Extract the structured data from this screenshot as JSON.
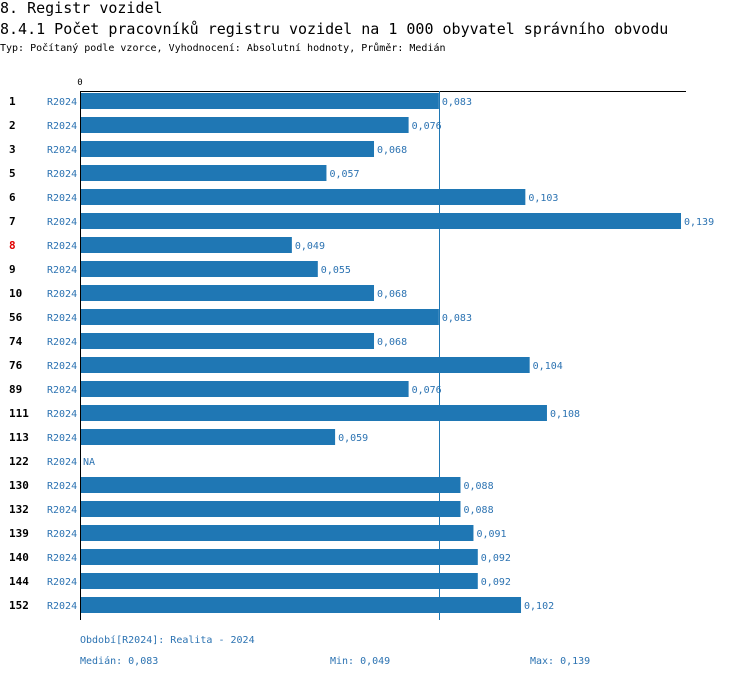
{
  "header": {
    "section": "8. Registr vozidel",
    "title": "8.4.1 Počet pracovníků registru vozidel na 1 000 obyvatel správního obvodu",
    "subtitle": "Typ: Počítaný podle vzorce, Vyhodnocení: Absolutní hodnoty, Průměr: Medián"
  },
  "colors": {
    "bar": "#1f77b4",
    "label": "#2c73b2",
    "highlight": "#e00000",
    "text": "#000000"
  },
  "chart_data": {
    "type": "bar",
    "orientation": "horizontal",
    "axis_zero_label": "0",
    "xlim": [
      0,
      0.139
    ],
    "reference_line": 0.083,
    "series_label": "R2024",
    "highlight_category": "8",
    "rows": [
      {
        "id": "1",
        "value": 0.083,
        "label": "0,083"
      },
      {
        "id": "2",
        "value": 0.076,
        "label": "0,076"
      },
      {
        "id": "3",
        "value": 0.068,
        "label": "0,068"
      },
      {
        "id": "5",
        "value": 0.057,
        "label": "0,057"
      },
      {
        "id": "6",
        "value": 0.103,
        "label": "0,103"
      },
      {
        "id": "7",
        "value": 0.139,
        "label": "0,139"
      },
      {
        "id": "8",
        "value": 0.049,
        "label": "0,049"
      },
      {
        "id": "9",
        "value": 0.055,
        "label": "0,055"
      },
      {
        "id": "10",
        "value": 0.068,
        "label": "0,068"
      },
      {
        "id": "56",
        "value": 0.083,
        "label": "0,083"
      },
      {
        "id": "74",
        "value": 0.068,
        "label": "0,068"
      },
      {
        "id": "76",
        "value": 0.104,
        "label": "0,104"
      },
      {
        "id": "89",
        "value": 0.076,
        "label": "0,076"
      },
      {
        "id": "111",
        "value": 0.108,
        "label": "0,108"
      },
      {
        "id": "113",
        "value": 0.059,
        "label": "0,059"
      },
      {
        "id": "122",
        "value": null,
        "label": "NA"
      },
      {
        "id": "130",
        "value": 0.088,
        "label": "0,088"
      },
      {
        "id": "132",
        "value": 0.088,
        "label": "0,088"
      },
      {
        "id": "139",
        "value": 0.091,
        "label": "0,091"
      },
      {
        "id": "140",
        "value": 0.092,
        "label": "0,092"
      },
      {
        "id": "144",
        "value": 0.092,
        "label": "0,092"
      },
      {
        "id": "152",
        "value": 0.102,
        "label": "0,102"
      }
    ]
  },
  "footer": {
    "period": "Období[R2024]: Realita - 2024",
    "median": "Medián: 0,083",
    "min": "Min: 0,049",
    "max": "Max: 0,139"
  }
}
